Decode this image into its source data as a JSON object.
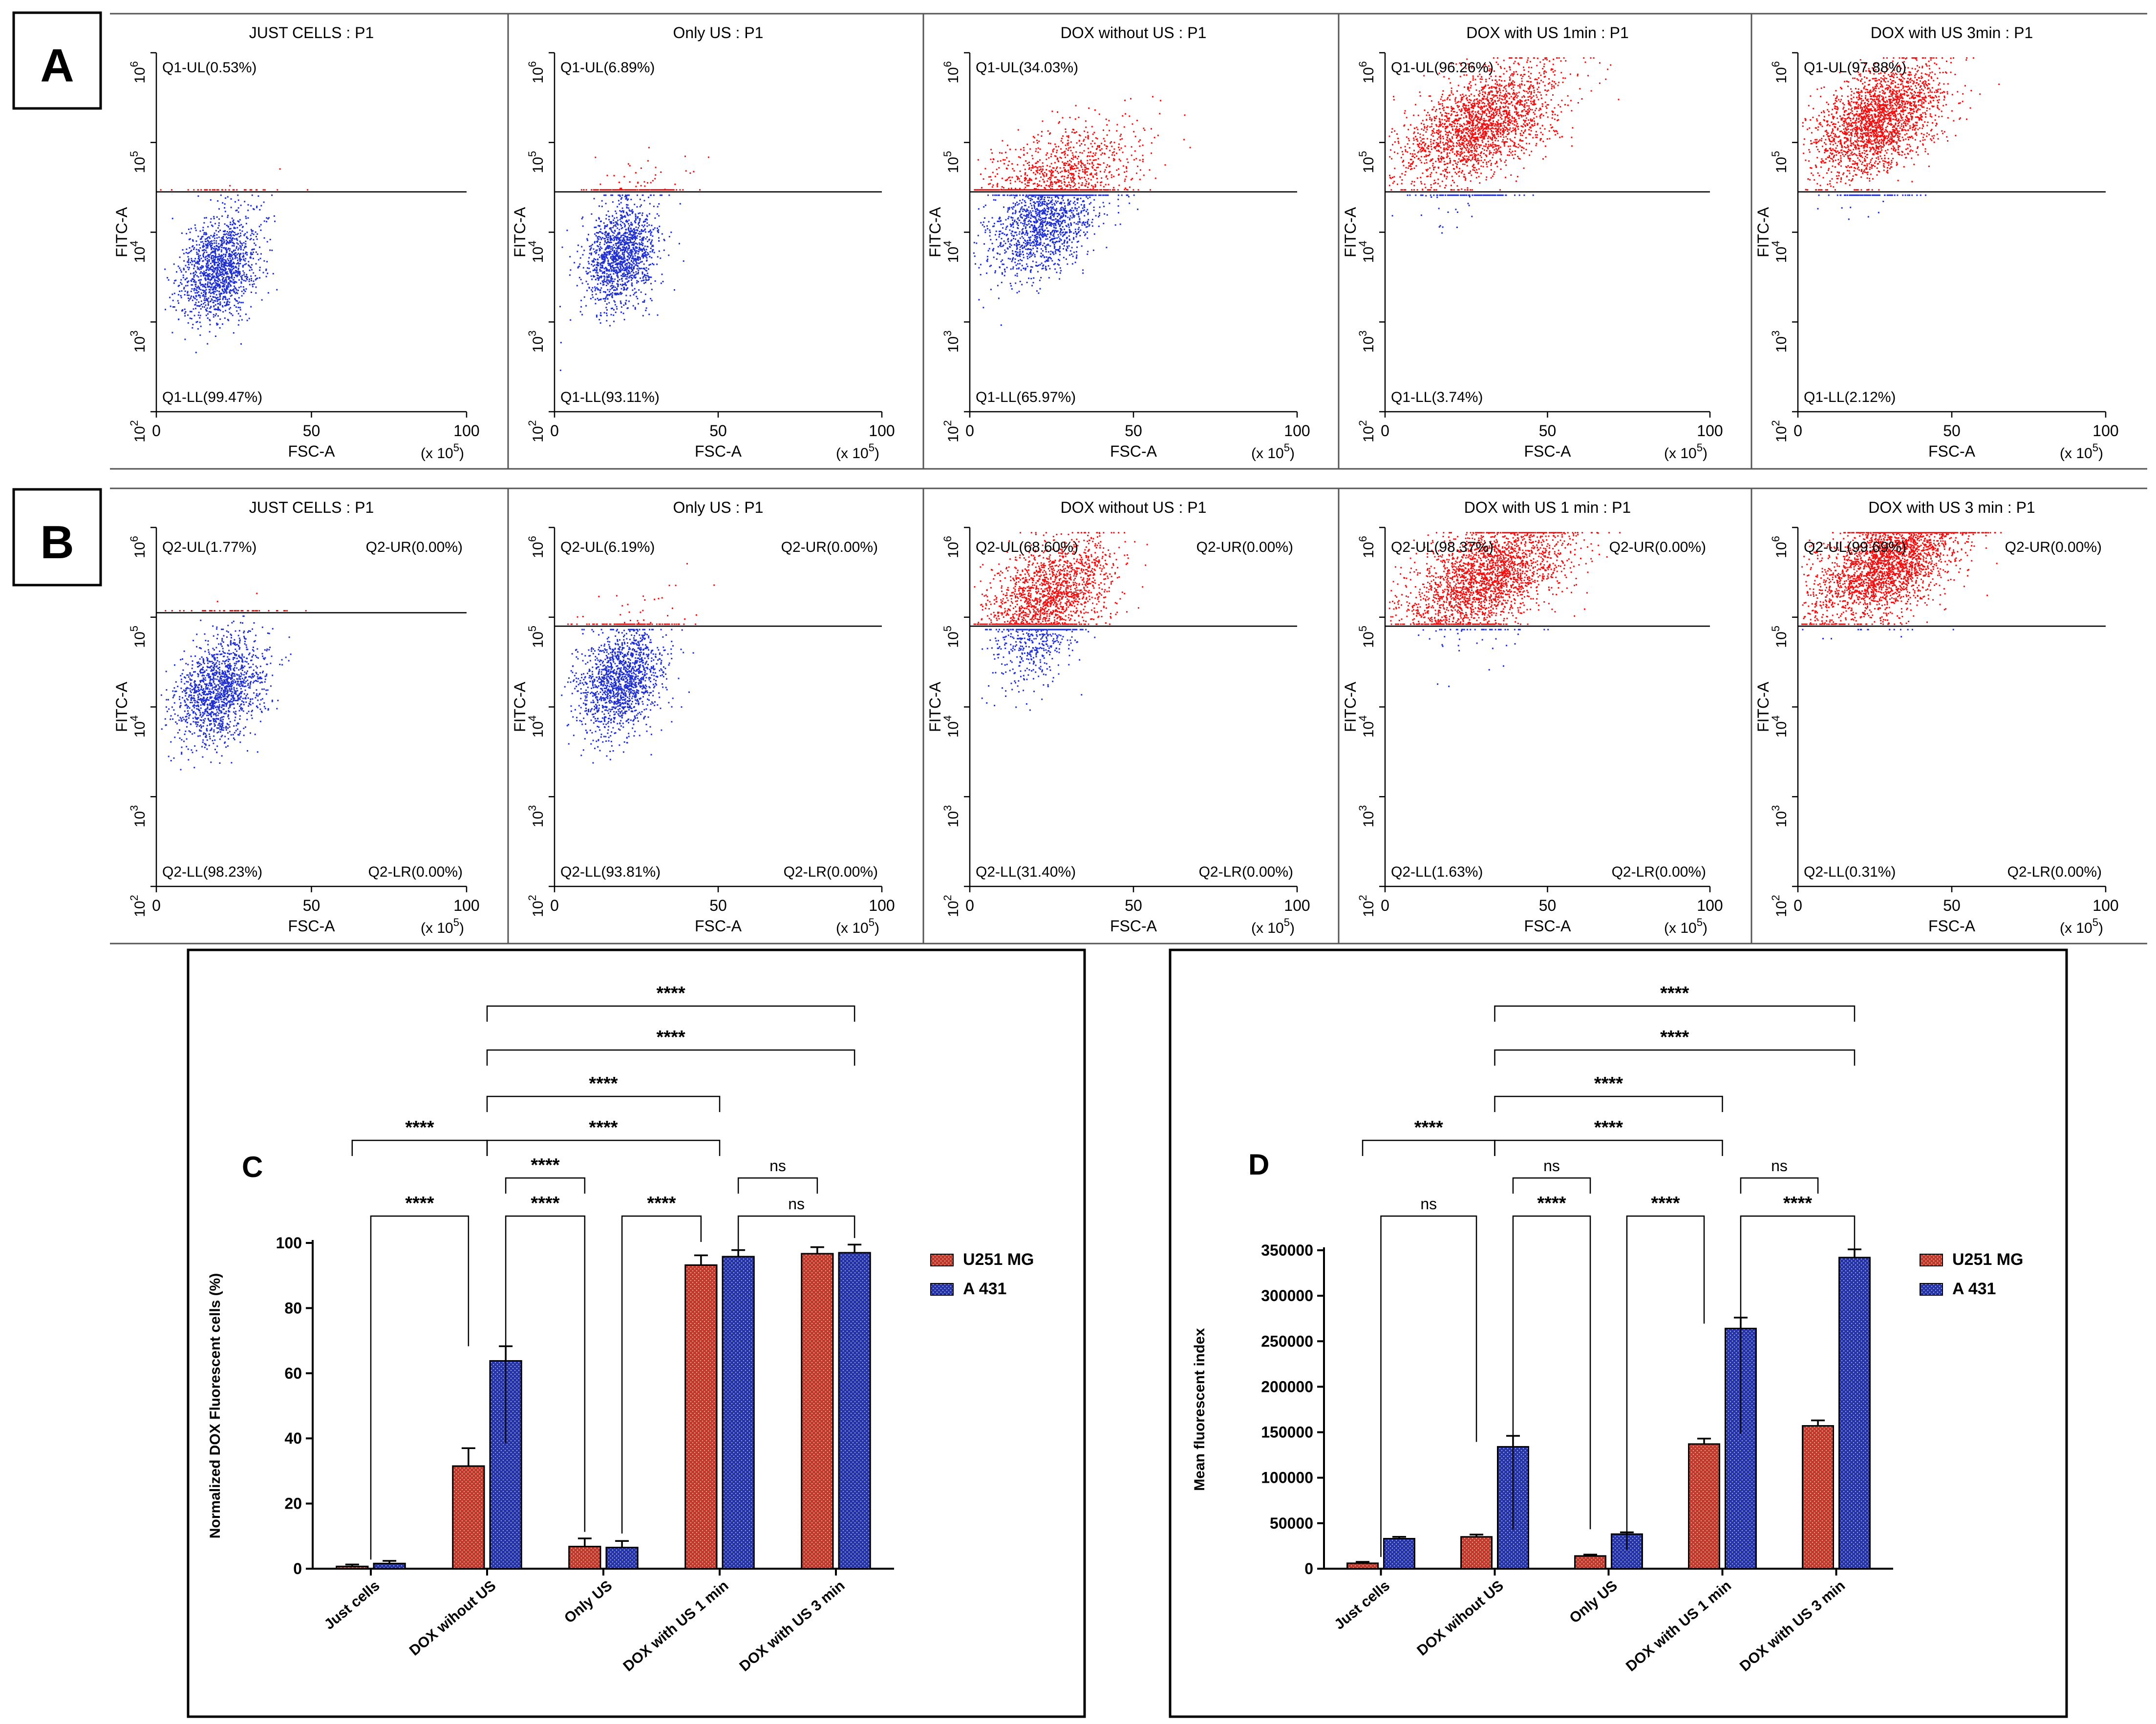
{
  "figure": {
    "panel_letters": [
      "A",
      "B",
      "C",
      "D"
    ],
    "colors": {
      "red": "#ee1111",
      "blue": "#1f2fd0",
      "bar_red": "#c0392b",
      "bar_blue": "#2533a8",
      "axis": "#000000"
    }
  },
  "chart_data": [
    {
      "type": "scatter",
      "panel": "A",
      "xlabel": "FSC-A",
      "ylabel": "FITC-A",
      "x_multiplier": "(x 10",
      "x_multiplier_exp": "5",
      "x_multiplier_close": ")",
      "xticks": [
        "0",
        "50",
        "100"
      ],
      "y_log_base": "10",
      "y_exponents": [
        "2",
        "3",
        "4",
        "5",
        "6"
      ],
      "xlim": [
        0,
        100
      ],
      "ylim_log10": [
        2,
        6
      ],
      "gate_log10": 4.45,
      "plots": [
        {
          "title": "JUST CELLS : P1",
          "upper_label": "Q1-UL(0.53%)",
          "lower_label": "Q1-LL(99.47%)",
          "cluster": {
            "cx": 20,
            "cy": 3.85,
            "upper_count": 40,
            "lower_count": 1450,
            "spread": 9
          }
        },
        {
          "title": "Only US : P1",
          "upper_label": "Q1-UL(6.89%)",
          "lower_label": "Q1-LL(93.11%)",
          "cluster": {
            "cx": 20,
            "cy": 4.0,
            "upper_count": 220,
            "lower_count": 1450,
            "spread": 8
          }
        },
        {
          "title": "DOX without US : P1",
          "upper_label": "Q1-UL(34.03%)",
          "lower_label": "Q1-LL(65.97%)",
          "cluster": {
            "cx": 22,
            "cy": 4.35,
            "upper_count": 1200,
            "lower_count": 1400,
            "spread": 12
          }
        },
        {
          "title": "DOX with US 1min : P1",
          "upper_label": "Q1-UL(96.26%)",
          "lower_label": "Q1-LL(3.74%)",
          "cluster": {
            "cx": 25,
            "cy": 5.0,
            "upper_count": 2200,
            "lower_count": 120,
            "spread": 12
          }
        },
        {
          "title": "DOX with US 3min : P1",
          "upper_label": "Q1-UL(97.88%)",
          "lower_label": "Q1-LL(2.12%)",
          "cluster": {
            "cx": 22,
            "cy": 5.05,
            "upper_count": 2300,
            "lower_count": 90,
            "spread": 10
          }
        }
      ]
    },
    {
      "type": "scatter",
      "panel": "B",
      "xlabel": "FSC-A",
      "ylabel": "FITC-A",
      "x_multiplier": "(x 10",
      "x_multiplier_exp": "5",
      "x_multiplier_close": ")",
      "xticks": [
        "0",
        "50",
        "100"
      ],
      "y_log_base": "10",
      "y_exponents": [
        "2",
        "3",
        "4",
        "5",
        "6"
      ],
      "xlim": [
        0,
        100
      ],
      "ylim_log10": [
        2,
        6
      ],
      "gate_log10": 4.95,
      "plots": [
        {
          "title": "JUST CELLS : P1",
          "ul": "Q2-UL(1.77%)",
          "ur": "Q2-UR(0.00%)",
          "ll": "Q2-LL(98.23%)",
          "lr": "Q2-LR(0.00%)",
          "gate_log10": 5.05,
          "cluster": {
            "cx": 20,
            "cy": 4.45,
            "upper_count": 50,
            "lower_count": 1500,
            "spread": 10
          }
        },
        {
          "title": "Only US : P1",
          "ul": "Q2-UL(6.19%)",
          "ur": "Q2-UR(0.00%)",
          "ll": "Q2-LL(93.81%)",
          "lr": "Q2-LR(0.00%)",
          "gate_log10": 4.9,
          "cluster": {
            "cx": 20,
            "cy": 4.55,
            "upper_count": 120,
            "lower_count": 1500,
            "spread": 9
          }
        },
        {
          "title": "DOX without US : P1",
          "ul": "Q2-UL(68.60%)",
          "ur": "Q2-UR(0.00%)",
          "ll": "Q2-LL(31.40%)",
          "lr": "Q2-LR(0.00%)",
          "gate_log10": 4.9,
          "cluster": {
            "cx": 20,
            "cy": 5.05,
            "upper_count": 1700,
            "lower_count": 500,
            "spread": 10
          }
        },
        {
          "title": "DOX with US 1 min : P1",
          "ul": "Q2-UL(98.37%)",
          "ur": "Q2-UR(0.00%)",
          "ll": "Q2-LL(1.63%)",
          "lr": "Q2-LR(0.00%)",
          "gate_log10": 4.9,
          "cluster": {
            "cx": 27,
            "cy": 5.25,
            "upper_count": 2400,
            "lower_count": 60,
            "spread": 12
          }
        },
        {
          "title": "DOX with US 3 min : P1",
          "ul": "Q2-UL(99.69%)",
          "ur": "Q2-UR(0.00%)",
          "ll": "Q2-LL(0.31%)",
          "lr": "Q2-LR(0.00%)",
          "gate_log10": 4.9,
          "cluster": {
            "cx": 25,
            "cy": 5.4,
            "upper_count": 2600,
            "lower_count": 15,
            "spread": 12
          }
        }
      ]
    },
    {
      "type": "bar",
      "panel": "C",
      "ylabel": "Normalized DOX Fluorescent cells (%)",
      "ylim": [
        0,
        100
      ],
      "yticks": [
        "0",
        "20",
        "40",
        "60",
        "80",
        "100"
      ],
      "categories": [
        "Just cells",
        "DOX wihout US",
        "Only US",
        "DOX with US 1 min",
        "DOX with US 3 min"
      ],
      "series": [
        {
          "name": "U251 MG",
          "values": [
            0.7,
            31.5,
            6.8,
            93.2,
            96.7
          ],
          "errors": [
            0.6,
            5.5,
            2.5,
            3.0,
            2.0
          ]
        },
        {
          "name": "A 431",
          "values": [
            1.6,
            63.8,
            6.5,
            95.8,
            97.0
          ],
          "errors": [
            0.8,
            4.5,
            2.0,
            2.0,
            2.5
          ]
        }
      ],
      "significance": [
        {
          "label": "****",
          "from": "c0",
          "to": "c1",
          "level": 1
        },
        {
          "label": "****",
          "from": "c1",
          "to": "c2",
          "level": 1
        },
        {
          "label": "****",
          "from": "c2",
          "to": "c3",
          "level": 1
        },
        {
          "label": "ns",
          "from": "c3",
          "to": "c4",
          "level": 1
        },
        {
          "label": "****",
          "from": "c1",
          "to": "c2",
          "level": 2
        },
        {
          "label": "ns",
          "from": "c3",
          "to": "c4",
          "level": 2
        },
        {
          "label": "****",
          "from": "c0",
          "to": "c1",
          "level": 3
        },
        {
          "label": "****",
          "from": "c1",
          "to": "c3",
          "level": 3
        },
        {
          "label": "****",
          "from": "c1",
          "to": "c3",
          "level": 4
        },
        {
          "label": "****",
          "from": "c1",
          "to": "c4",
          "level": 5
        },
        {
          "label": "****",
          "from": "c1",
          "to": "c4",
          "level": 6
        }
      ]
    },
    {
      "type": "bar",
      "panel": "D",
      "ylabel": "Mean fluorescent index",
      "ylim": [
        0,
        350000
      ],
      "yticks": [
        "0",
        "50000",
        "100000",
        "150000",
        "200000",
        "250000",
        "300000",
        "350000"
      ],
      "categories": [
        "Just cells",
        "DOX wihout US",
        "Only US",
        "DOX with US 1 min",
        "DOX with US 3 min"
      ],
      "series": [
        {
          "name": "U251 MG",
          "values": [
            6000,
            35000,
            14000,
            137000,
            157000
          ],
          "errors": [
            1500,
            2500,
            1500,
            6000,
            6000
          ]
        },
        {
          "name": "A 431",
          "values": [
            33000,
            134000,
            38000,
            264000,
            342000
          ],
          "errors": [
            2000,
            12000,
            2000,
            12000,
            9000
          ]
        }
      ],
      "significance": [
        {
          "label": "ns",
          "from": "c0",
          "to": "c1",
          "level": 1
        },
        {
          "label": "****",
          "from": "c1",
          "to": "c2",
          "level": 1
        },
        {
          "label": "****",
          "from": "c2",
          "to": "c3",
          "level": 1
        },
        {
          "label": "****",
          "from": "c3",
          "to": "c4",
          "level": 1
        },
        {
          "label": "ns",
          "from": "c1",
          "to": "c2",
          "level": 2
        },
        {
          "label": "ns",
          "from": "c3",
          "to": "c4",
          "level": 2
        },
        {
          "label": "****",
          "from": "c0",
          "to": "c1",
          "level": 3
        },
        {
          "label": "****",
          "from": "c1",
          "to": "c3",
          "level": 3
        },
        {
          "label": "****",
          "from": "c1",
          "to": "c3",
          "level": 4
        },
        {
          "label": "****",
          "from": "c1",
          "to": "c4",
          "level": 5
        },
        {
          "label": "****",
          "from": "c1",
          "to": "c4",
          "level": 6
        }
      ]
    }
  ]
}
